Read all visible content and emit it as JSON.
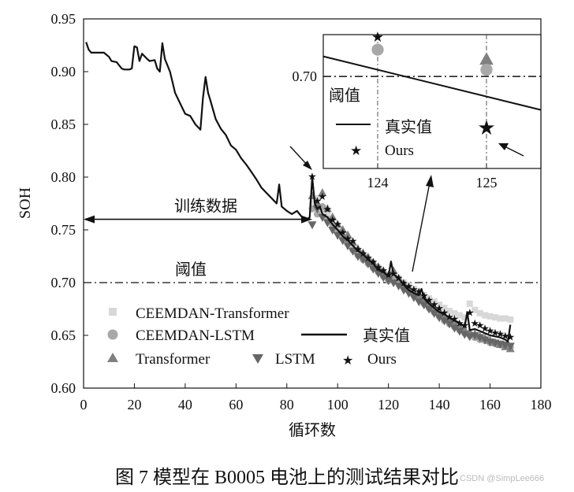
{
  "caption": "图 7  模型在 B0005 电池上的测试结果对比",
  "watermark": "CSDN @SimpLee666",
  "colors": {
    "true": "#111111",
    "ours": "#333333",
    "lstm": "#666666",
    "transformer": "#808080",
    "ceemdan_lstm": "#a8a8a8",
    "ceemdan_transformer": "#d8d8d8",
    "threshold": "#111111"
  },
  "chart_data": {
    "type": "line",
    "xlabel": "循环数",
    "ylabel": "SOH",
    "xlim": [
      0,
      180
    ],
    "ylim": [
      0.6,
      0.95
    ],
    "xticks": [
      0,
      20,
      40,
      60,
      80,
      100,
      120,
      140,
      160,
      180
    ],
    "yticks": [
      0.6,
      0.65,
      0.7,
      0.75,
      0.8,
      0.85,
      0.9,
      0.95
    ],
    "threshold": {
      "value": 0.7,
      "label": "阈值"
    },
    "train_region": {
      "x": [
        0,
        90
      ],
      "y": 0.76,
      "label": "训练数据"
    },
    "legend": {
      "ceemdan_transformer": "CEEMDAN-Transformer",
      "ceemdan_lstm": "CEEMDAN-LSTM",
      "transformer": "Transformer",
      "lstm": "LSTM",
      "ours": "Ours",
      "true": "真实值"
    },
    "series": {
      "true": {
        "x": [
          1,
          2,
          3,
          6,
          8,
          10,
          11,
          13,
          15,
          16,
          18,
          19,
          20,
          21,
          22,
          23,
          25,
          26,
          28,
          29,
          30,
          31,
          32,
          34,
          36,
          38,
          40,
          42,
          44,
          46,
          47,
          48,
          49,
          50,
          52,
          54,
          56,
          58,
          60,
          62,
          64,
          66,
          68,
          70,
          72,
          74,
          76,
          77,
          78,
          79,
          80,
          82,
          84,
          86,
          88,
          89,
          90,
          91,
          92,
          93,
          94,
          96,
          98,
          100,
          102,
          104,
          106,
          108,
          110,
          112,
          114,
          116,
          118,
          120,
          121,
          122,
          124,
          126,
          128,
          130,
          132,
          133,
          134,
          136,
          138,
          140,
          142,
          144,
          146,
          148,
          150,
          151,
          152,
          154,
          156,
          158,
          160,
          162,
          164,
          166,
          167,
          168
        ],
        "y": [
          0.928,
          0.921,
          0.918,
          0.918,
          0.918,
          0.914,
          0.91,
          0.909,
          0.903,
          0.902,
          0.902,
          0.903,
          0.924,
          0.923,
          0.91,
          0.917,
          0.912,
          0.91,
          0.911,
          0.903,
          0.9,
          0.927,
          0.912,
          0.9,
          0.88,
          0.87,
          0.86,
          0.858,
          0.85,
          0.845,
          0.875,
          0.895,
          0.88,
          0.872,
          0.855,
          0.846,
          0.84,
          0.83,
          0.826,
          0.818,
          0.812,
          0.805,
          0.798,
          0.79,
          0.785,
          0.78,
          0.775,
          0.793,
          0.772,
          0.77,
          0.768,
          0.765,
          0.768,
          0.762,
          0.76,
          0.762,
          0.8,
          0.775,
          0.77,
          0.772,
          0.765,
          0.762,
          0.755,
          0.75,
          0.744,
          0.74,
          0.735,
          0.73,
          0.727,
          0.722,
          0.718,
          0.712,
          0.71,
          0.706,
          0.72,
          0.708,
          0.704,
          0.698,
          0.693,
          0.69,
          0.688,
          0.694,
          0.685,
          0.68,
          0.676,
          0.672,
          0.67,
          0.667,
          0.664,
          0.662,
          0.658,
          0.672,
          0.655,
          0.656,
          0.654,
          0.652,
          0.65,
          0.649,
          0.648,
          0.646,
          0.644,
          0.66
        ]
      },
      "ours": {
        "x": [
          90,
          92,
          94,
          96,
          98,
          100,
          102,
          104,
          106,
          108,
          110,
          112,
          114,
          116,
          118,
          120,
          122,
          124,
          126,
          128,
          130,
          132,
          134,
          136,
          138,
          140,
          142,
          144,
          146,
          148,
          150,
          152,
          154,
          156,
          158,
          160,
          162,
          164,
          166,
          168
        ],
        "y": [
          0.801,
          0.778,
          0.782,
          0.77,
          0.76,
          0.756,
          0.748,
          0.742,
          0.74,
          0.732,
          0.728,
          0.724,
          0.72,
          0.715,
          0.712,
          0.708,
          0.709,
          0.705,
          0.7,
          0.697,
          0.694,
          0.692,
          0.688,
          0.684,
          0.68,
          0.676,
          0.672,
          0.668,
          0.666,
          0.662,
          0.66,
          0.672,
          0.662,
          0.66,
          0.657,
          0.655,
          0.653,
          0.652,
          0.65,
          0.649
        ]
      },
      "lstm": {
        "x": [
          90,
          92,
          94,
          96,
          98,
          100,
          102,
          104,
          106,
          108,
          110,
          112,
          114,
          116,
          118,
          120,
          122,
          124,
          126,
          128,
          130,
          132,
          134,
          136,
          138,
          140,
          142,
          144,
          146,
          148,
          150,
          152,
          154,
          156,
          158,
          160,
          162,
          164,
          166,
          168
        ],
        "y": [
          0.755,
          0.77,
          0.762,
          0.757,
          0.75,
          0.745,
          0.74,
          0.735,
          0.73,
          0.725,
          0.722,
          0.718,
          0.713,
          0.709,
          0.705,
          0.702,
          0.7,
          0.697,
          0.693,
          0.69,
          0.686,
          0.682,
          0.679,
          0.675,
          0.671,
          0.667,
          0.664,
          0.661,
          0.657,
          0.654,
          0.651,
          0.649,
          0.65,
          0.648,
          0.646,
          0.644,
          0.643,
          0.642,
          0.641,
          0.64
        ]
      },
      "transformer": {
        "x": [
          90,
          92,
          94,
          96,
          98,
          100,
          102,
          104,
          106,
          108,
          110,
          112,
          114,
          116,
          118,
          120,
          122,
          124,
          126,
          128,
          130,
          132,
          134,
          136,
          138,
          140,
          142,
          144,
          146,
          148,
          150,
          152,
          154,
          156,
          158,
          160,
          162,
          164,
          166,
          168
        ],
        "y": [
          0.782,
          0.775,
          0.785,
          0.77,
          0.762,
          0.755,
          0.75,
          0.745,
          0.738,
          0.732,
          0.728,
          0.724,
          0.719,
          0.715,
          0.711,
          0.707,
          0.711,
          0.704,
          0.699,
          0.695,
          0.691,
          0.688,
          0.684,
          0.68,
          0.676,
          0.672,
          0.668,
          0.665,
          0.661,
          0.658,
          0.655,
          0.653,
          0.651,
          0.649,
          0.647,
          0.645,
          0.643,
          0.641,
          0.639,
          0.637
        ]
      },
      "ceemdan_lstm": {
        "x": [
          90,
          92,
          94,
          96,
          98,
          100,
          102,
          104,
          106,
          108,
          110,
          112,
          114,
          116,
          118,
          120,
          122,
          124,
          126,
          128,
          130,
          132,
          134,
          136,
          138,
          140,
          142,
          144,
          146,
          148,
          150,
          152,
          154,
          156,
          158,
          160,
          162,
          164,
          166,
          168
        ],
        "y": [
          0.77,
          0.765,
          0.772,
          0.76,
          0.755,
          0.748,
          0.742,
          0.737,
          0.731,
          0.726,
          0.722,
          0.718,
          0.714,
          0.71,
          0.706,
          0.702,
          0.706,
          0.7,
          0.696,
          0.692,
          0.688,
          0.684,
          0.68,
          0.676,
          0.672,
          0.668,
          0.664,
          0.661,
          0.658,
          0.655,
          0.652,
          0.65,
          0.648,
          0.646,
          0.645,
          0.643,
          0.642,
          0.641,
          0.64,
          0.639
        ]
      },
      "ceemdan_transformer": {
        "x": [
          90,
          92,
          94,
          96,
          98,
          100,
          102,
          104,
          106,
          108,
          110,
          112,
          114,
          116,
          118,
          120,
          122,
          124,
          126,
          128,
          130,
          132,
          134,
          136,
          138,
          140,
          142,
          144,
          146,
          148,
          150,
          152,
          154,
          156,
          158,
          160,
          162,
          164,
          166,
          168
        ],
        "y": [
          0.775,
          0.78,
          0.768,
          0.765,
          0.758,
          0.752,
          0.746,
          0.74,
          0.735,
          0.73,
          0.726,
          0.722,
          0.718,
          0.714,
          0.71,
          0.706,
          0.708,
          0.704,
          0.7,
          0.697,
          0.694,
          0.691,
          0.688,
          0.685,
          0.682,
          0.679,
          0.676,
          0.673,
          0.671,
          0.669,
          0.667,
          0.68,
          0.674,
          0.671,
          0.669,
          0.668,
          0.667,
          0.666,
          0.666,
          0.665
        ]
      }
    },
    "inset": {
      "xlim": [
        123.5,
        125.5
      ],
      "ylim": [
        0.6945,
        0.7025
      ],
      "xticks": [
        124,
        125
      ],
      "yticks": [
        0.7
      ],
      "threshold_label": "阈值",
      "true_line": {
        "x": [
          123.5,
          125.5
        ],
        "y": [
          0.7012,
          0.698
        ]
      },
      "points": {
        "ours": {
          "x": [
            124,
            125
          ],
          "y": [
            0.7024,
            0.697
          ]
        },
        "ceemdan_lstm": {
          "x": [
            124,
            125
          ],
          "y": [
            0.7016,
            0.7004
          ]
        },
        "transformer": {
          "x": [
            125
          ],
          "y": [
            0.701
          ]
        },
        "ceemdan_transformer": {
          "x": [
            125
          ],
          "y": [
            0.7006
          ]
        }
      },
      "legend": {
        "true": "真实值",
        "ours": "Ours"
      }
    }
  }
}
